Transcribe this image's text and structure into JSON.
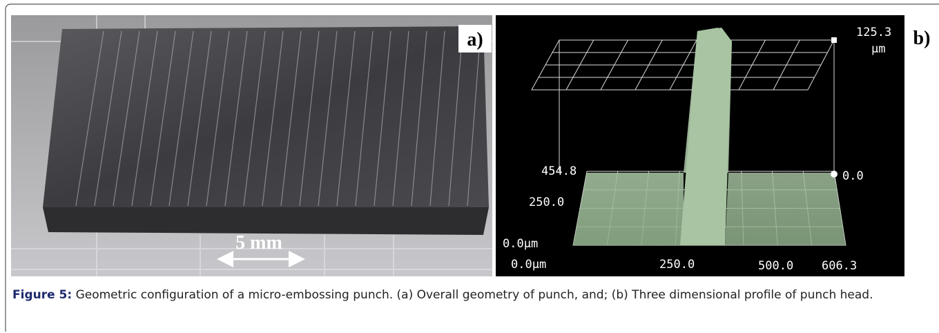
{
  "figure": {
    "panels": [
      {
        "label": "a)",
        "scale_bar": "5 mm"
      },
      {
        "label": "b)",
        "labels": [
          "125.3",
          "µm",
          "454.8",
          "250.0",
          "0.0µm",
          "0.0",
          "0.0µm",
          "250.0",
          "500.0",
          "606.3"
        ]
      }
    ],
    "caption": {
      "label": "Figure 5:",
      "text": "Geometric configuration of a micro-embossing punch. (a) Overall geometry of punch, and; (b) Three dimensional profile of punch head."
    }
  }
}
